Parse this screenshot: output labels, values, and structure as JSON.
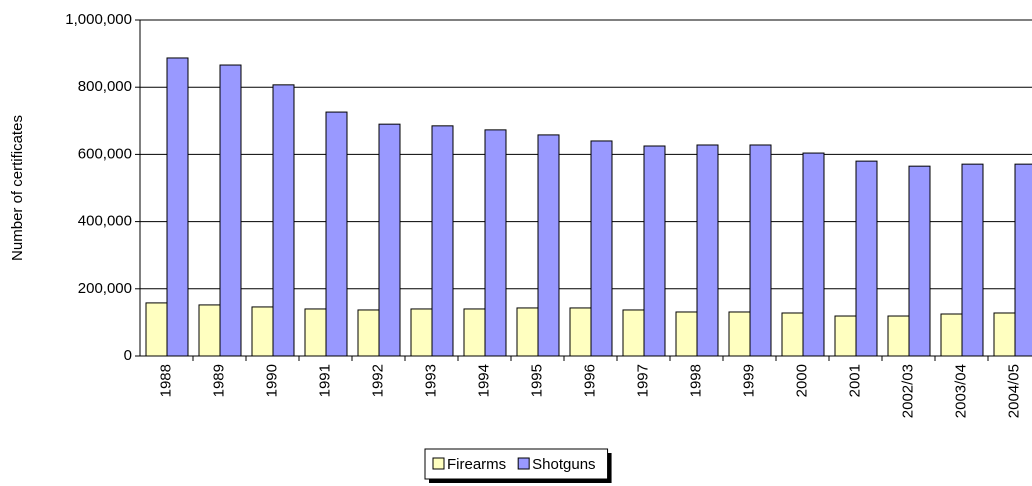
{
  "chart_data": {
    "type": "bar",
    "y_label": "Number of certificates",
    "categories": [
      "1988",
      "1989",
      "1990",
      "1991",
      "1992",
      "1993",
      "1994",
      "1995",
      "1996",
      "1997",
      "1998",
      "1999",
      "2000",
      "2001",
      "2002/03",
      "2003/04",
      "2004/05"
    ],
    "series": [
      {
        "name": "Firearms",
        "color": "#ffffc0",
        "values": [
          158000,
          152000,
          146000,
          140000,
          137000,
          140000,
          140000,
          143000,
          143000,
          137000,
          131000,
          131000,
          128000,
          119000,
          119000,
          125000,
          128000
        ]
      },
      {
        "name": "Shotguns",
        "color": "#9999ff",
        "values": [
          887000,
          866000,
          807000,
          726000,
          690000,
          685000,
          673000,
          658000,
          640000,
          625000,
          628000,
          628000,
          604000,
          580000,
          565000,
          571000,
          571000
        ]
      }
    ],
    "ylim": [
      0,
      1000000
    ],
    "yticks": [
      0,
      {
        "value": 200000,
        "label": "200,000"
      },
      {
        "value": 400000,
        "label": "400,000"
      },
      {
        "value": 600000,
        "label": "600,000"
      },
      {
        "value": 800000,
        "label": "800,000"
      },
      {
        "value": 1000000,
        "label": "1,000,000"
      }
    ],
    "grid": true,
    "legend": "bottom"
  }
}
